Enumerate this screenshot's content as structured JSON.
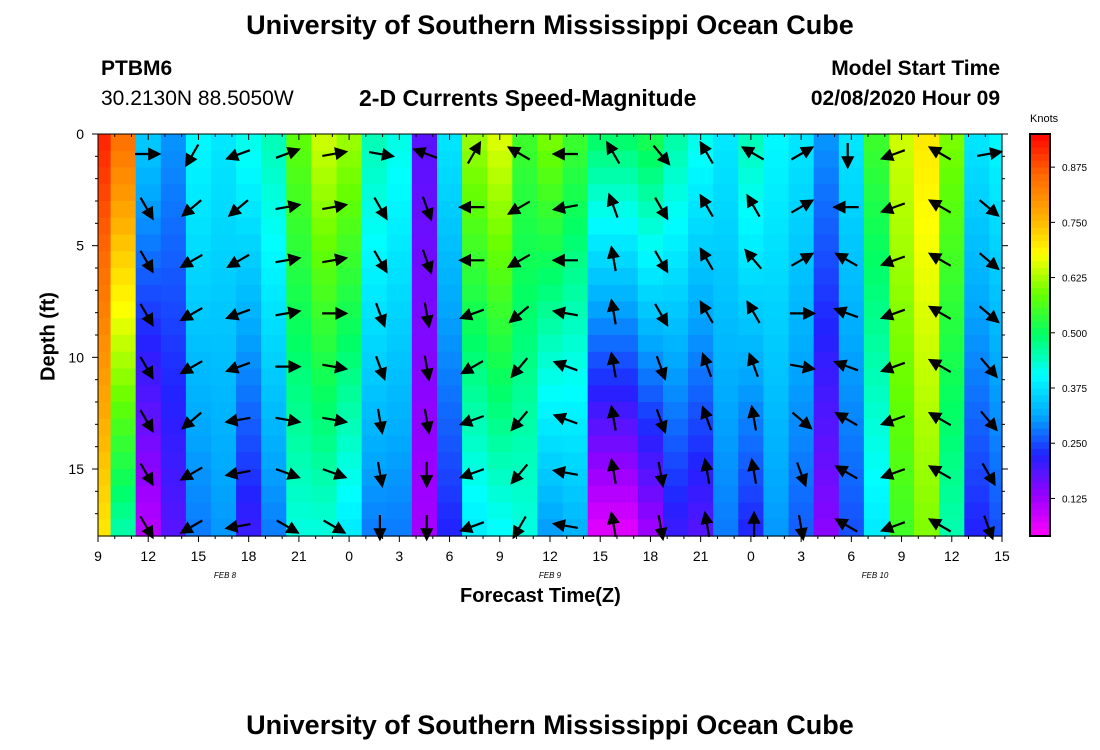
{
  "header": {
    "title": "University of Southern Mississippi Ocean Cube",
    "station_id": "PTBM6",
    "station_coords": "30.2130N 88.5050W",
    "product": "2-D Currents Speed-Magnitude",
    "model_start_label": "Model Start Time",
    "model_start_value": "02/08/2020 Hour 09"
  },
  "footer": {
    "title": "University of Southern Mississippi Ocean Cube"
  },
  "colorbar": {
    "unit": "Knots",
    "ticks": [
      "0.875",
      "0.750",
      "0.625",
      "0.500",
      "0.375",
      "0.250",
      "0.125"
    ],
    "colors": [
      "#ff00ff",
      "#9900ff",
      "#2222ff",
      "#00aaff",
      "#00ffff",
      "#00ff66",
      "#66ff00",
      "#ffff00",
      "#ffaa00",
      "#ff6600",
      "#ff0000"
    ]
  },
  "chart_data": {
    "type": "heatmap",
    "title": "2-D Currents Speed-Magnitude",
    "xlabel": "Forecast Time(Z)",
    "ylabel": "Depth (ft)",
    "x_tick_labels": [
      "9",
      "12",
      "15",
      "18",
      "21",
      "0",
      "3",
      "6",
      "9",
      "12",
      "15",
      "18",
      "21",
      "0",
      "3",
      "6",
      "9",
      "12",
      "15"
    ],
    "y_tick_labels": [
      "0",
      "5",
      "10",
      "15"
    ],
    "date_labels": [
      "FEB 8",
      "FEB 9",
      "FEB 10"
    ],
    "x_hours_since_start": [
      0,
      3,
      6,
      9,
      12,
      15,
      18,
      21,
      24,
      27,
      30,
      33,
      36,
      39,
      42,
      45,
      48,
      51,
      54
    ],
    "ylim": [
      0,
      18
    ],
    "colorbar_range_knots": [
      0.04,
      0.95
    ],
    "speed_profiles_knots": [
      {
        "t": 0,
        "top": 0.92,
        "bottom": 0.7
      },
      {
        "t": 1.5,
        "top": 0.85,
        "bottom": 0.45
      },
      {
        "t": 3,
        "top": 0.35,
        "bottom": 0.1
      },
      {
        "t": 4.5,
        "top": 0.3,
        "bottom": 0.18
      },
      {
        "t": 6,
        "top": 0.4,
        "bottom": 0.28
      },
      {
        "t": 7.5,
        "top": 0.38,
        "bottom": 0.3
      },
      {
        "t": 9,
        "top": 0.42,
        "bottom": 0.2
      },
      {
        "t": 10.5,
        "top": 0.45,
        "bottom": 0.28
      },
      {
        "t": 12,
        "top": 0.58,
        "bottom": 0.42
      },
      {
        "t": 13.5,
        "top": 0.65,
        "bottom": 0.42
      },
      {
        "t": 15,
        "top": 0.62,
        "bottom": 0.38
      },
      {
        "t": 16.5,
        "top": 0.45,
        "bottom": 0.28
      },
      {
        "t": 18,
        "top": 0.42,
        "bottom": 0.28
      },
      {
        "t": 19.5,
        "top": 0.18,
        "bottom": 0.12
      },
      {
        "t": 21,
        "top": 0.38,
        "bottom": 0.22
      },
      {
        "t": 22.5,
        "top": 0.62,
        "bottom": 0.38
      },
      {
        "t": 24,
        "top": 0.66,
        "bottom": 0.4
      },
      {
        "t": 25.5,
        "top": 0.55,
        "bottom": 0.42
      },
      {
        "t": 27,
        "top": 0.6,
        "bottom": 0.3
      },
      {
        "t": 28.5,
        "top": 0.55,
        "bottom": 0.32
      },
      {
        "t": 30,
        "top": 0.5,
        "bottom": 0.06
      },
      {
        "t": 31.5,
        "top": 0.5,
        "bottom": 0.06
      },
      {
        "t": 33,
        "top": 0.52,
        "bottom": 0.12
      },
      {
        "t": 34.5,
        "top": 0.46,
        "bottom": 0.2
      },
      {
        "t": 36,
        "top": 0.42,
        "bottom": 0.18
      },
      {
        "t": 37.5,
        "top": 0.38,
        "bottom": 0.28
      },
      {
        "t": 39,
        "top": 0.45,
        "bottom": 0.22
      },
      {
        "t": 40.5,
        "top": 0.4,
        "bottom": 0.3
      },
      {
        "t": 42,
        "top": 0.38,
        "bottom": 0.26
      },
      {
        "t": 43.5,
        "top": 0.3,
        "bottom": 0.14
      },
      {
        "t": 45,
        "top": 0.38,
        "bottom": 0.25
      },
      {
        "t": 46.5,
        "top": 0.55,
        "bottom": 0.38
      },
      {
        "t": 48,
        "top": 0.65,
        "bottom": 0.55
      },
      {
        "t": 49.5,
        "top": 0.7,
        "bottom": 0.6
      },
      {
        "t": 51,
        "top": 0.6,
        "bottom": 0.45
      },
      {
        "t": 52.5,
        "top": 0.38,
        "bottom": 0.22
      },
      {
        "t": 54,
        "top": 0.4,
        "bottom": 0.25
      }
    ],
    "vector_directions_deg": [
      [
        90,
        210,
        250,
        70,
        80,
        100,
        290,
        30,
        300,
        270,
        330,
        140,
        330,
        300,
        60,
        180,
        250,
        300,
        80
      ],
      [
        150,
        230,
        230,
        80,
        80,
        150,
        160,
        270,
        240,
        260,
        340,
        150,
        330,
        330,
        60,
        270,
        250,
        300,
        130
      ],
      [
        150,
        240,
        240,
        80,
        80,
        150,
        160,
        270,
        240,
        270,
        350,
        150,
        330,
        320,
        60,
        300,
        250,
        300,
        130
      ],
      [
        150,
        240,
        250,
        80,
        90,
        160,
        170,
        250,
        230,
        280,
        350,
        150,
        330,
        330,
        90,
        290,
        250,
        300,
        130
      ],
      [
        150,
        240,
        250,
        90,
        100,
        160,
        170,
        240,
        220,
        290,
        350,
        160,
        340,
        340,
        100,
        290,
        250,
        300,
        140
      ],
      [
        150,
        230,
        260,
        100,
        100,
        170,
        170,
        250,
        220,
        290,
        350,
        160,
        340,
        350,
        130,
        300,
        250,
        300,
        140
      ],
      [
        150,
        240,
        260,
        110,
        110,
        170,
        180,
        250,
        220,
        280,
        350,
        170,
        350,
        350,
        160,
        300,
        250,
        300,
        150
      ],
      [
        150,
        240,
        260,
        120,
        120,
        180,
        180,
        250,
        210,
        280,
        350,
        170,
        350,
        360,
        170,
        300,
        250,
        300,
        160
      ]
    ]
  }
}
